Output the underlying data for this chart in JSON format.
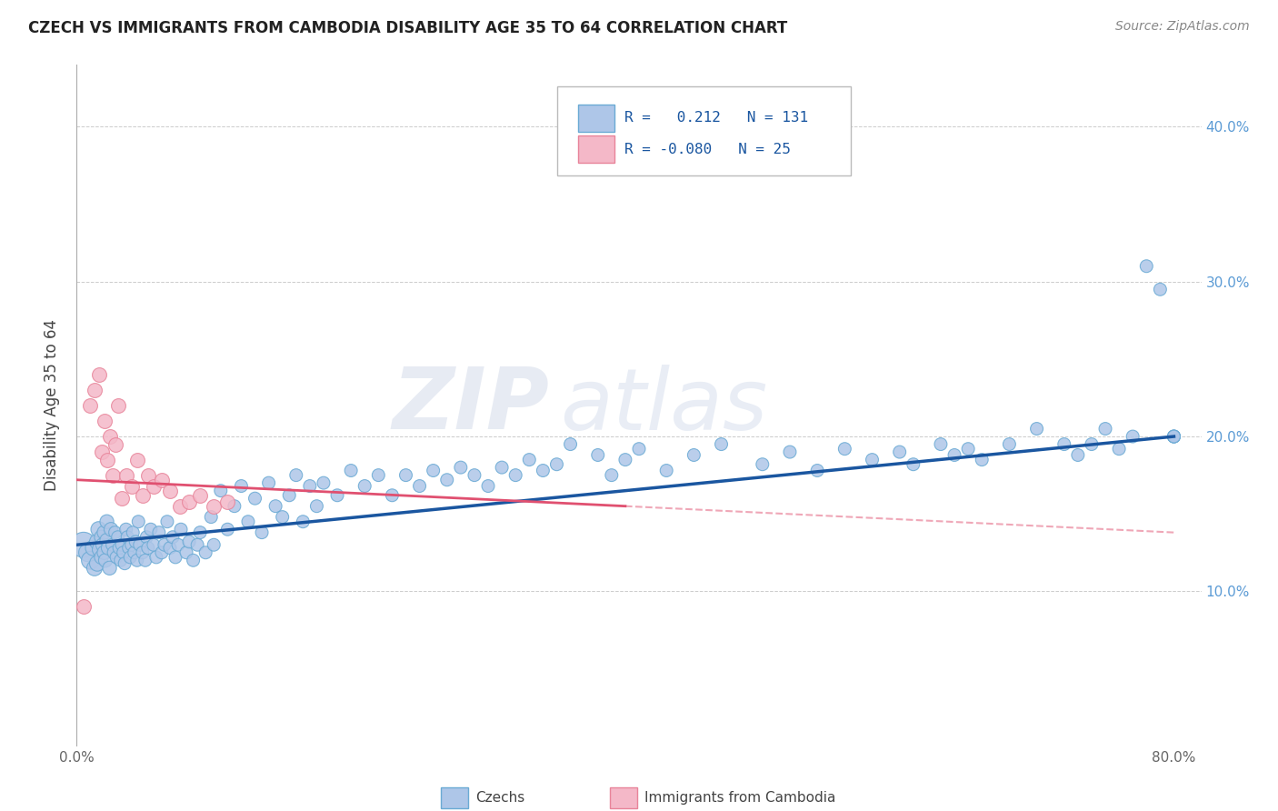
{
  "title": "CZECH VS IMMIGRANTS FROM CAMBODIA DISABILITY AGE 35 TO 64 CORRELATION CHART",
  "source": "Source: ZipAtlas.com",
  "ylabel": "Disability Age 35 to 64",
  "xlim": [
    0.0,
    0.82
  ],
  "ylim": [
    0.0,
    0.44
  ],
  "xtick_positions": [
    0.0,
    0.1,
    0.2,
    0.3,
    0.4,
    0.5,
    0.6,
    0.7,
    0.8
  ],
  "xticklabels": [
    "0.0%",
    "",
    "",
    "",
    "",
    "",
    "",
    "",
    "80.0%"
  ],
  "ytick_positions": [
    0.0,
    0.1,
    0.2,
    0.3,
    0.4
  ],
  "yticklabels_right": [
    "",
    "10.0%",
    "20.0%",
    "30.0%",
    "40.0%"
  ],
  "czech_color": "#aec6e8",
  "cambodia_color": "#f4b8c8",
  "czech_edge_color": "#6aaad4",
  "cambodia_edge_color": "#e8849a",
  "trend_czech_color": "#1a56a0",
  "trend_cambodia_color": "#e05070",
  "legend_R_czech": "0.212",
  "legend_N_czech": "131",
  "legend_R_cambodia": "-0.080",
  "legend_N_cambodia": "25",
  "watermark_zip": "ZIP",
  "watermark_atlas": "atlas",
  "background_color": "#ffffff",
  "grid_color": "#cccccc",
  "trend_czech_x0": 0.0,
  "trend_czech_y0": 0.13,
  "trend_czech_x1": 0.8,
  "trend_czech_y1": 0.2,
  "trend_cambodia_solid_x0": 0.0,
  "trend_cambodia_solid_y0": 0.172,
  "trend_cambodia_solid_x1": 0.4,
  "trend_cambodia_solid_y1": 0.155,
  "trend_cambodia_dashed_x0": 0.4,
  "trend_cambodia_dashed_y0": 0.155,
  "trend_cambodia_dashed_x1": 0.8,
  "trend_cambodia_dashed_y1": 0.138,
  "czech_x": [
    0.005,
    0.008,
    0.01,
    0.012,
    0.013,
    0.015,
    0.015,
    0.016,
    0.017,
    0.018,
    0.018,
    0.019,
    0.02,
    0.02,
    0.021,
    0.022,
    0.022,
    0.023,
    0.024,
    0.025,
    0.026,
    0.027,
    0.028,
    0.029,
    0.03,
    0.031,
    0.032,
    0.033,
    0.034,
    0.035,
    0.036,
    0.037,
    0.038,
    0.039,
    0.04,
    0.041,
    0.042,
    0.043,
    0.044,
    0.045,
    0.046,
    0.048,
    0.05,
    0.051,
    0.052,
    0.054,
    0.056,
    0.058,
    0.06,
    0.062,
    0.064,
    0.066,
    0.068,
    0.07,
    0.072,
    0.074,
    0.076,
    0.08,
    0.082,
    0.085,
    0.088,
    0.09,
    0.094,
    0.098,
    0.1,
    0.105,
    0.11,
    0.115,
    0.12,
    0.125,
    0.13,
    0.135,
    0.14,
    0.145,
    0.15,
    0.155,
    0.16,
    0.165,
    0.17,
    0.175,
    0.18,
    0.19,
    0.2,
    0.21,
    0.22,
    0.23,
    0.24,
    0.25,
    0.26,
    0.27,
    0.28,
    0.29,
    0.3,
    0.31,
    0.32,
    0.33,
    0.34,
    0.35,
    0.36,
    0.38,
    0.39,
    0.4,
    0.41,
    0.43,
    0.45,
    0.47,
    0.5,
    0.52,
    0.54,
    0.56,
    0.58,
    0.6,
    0.61,
    0.63,
    0.64,
    0.65,
    0.66,
    0.68,
    0.7,
    0.72,
    0.73,
    0.74,
    0.75,
    0.76,
    0.77,
    0.78,
    0.79,
    0.8,
    0.8,
    0.8,
    0.8
  ],
  "czech_y": [
    0.13,
    0.125,
    0.12,
    0.128,
    0.115,
    0.132,
    0.118,
    0.14,
    0.127,
    0.135,
    0.122,
    0.13,
    0.138,
    0.125,
    0.12,
    0.133,
    0.145,
    0.128,
    0.115,
    0.14,
    0.13,
    0.125,
    0.138,
    0.122,
    0.135,
    0.128,
    0.12,
    0.13,
    0.125,
    0.118,
    0.14,
    0.135,
    0.128,
    0.122,
    0.13,
    0.138,
    0.125,
    0.132,
    0.12,
    0.145,
    0.13,
    0.125,
    0.12,
    0.135,
    0.128,
    0.14,
    0.13,
    0.122,
    0.138,
    0.125,
    0.13,
    0.145,
    0.128,
    0.135,
    0.122,
    0.13,
    0.14,
    0.125,
    0.132,
    0.12,
    0.13,
    0.138,
    0.125,
    0.148,
    0.13,
    0.165,
    0.14,
    0.155,
    0.168,
    0.145,
    0.16,
    0.138,
    0.17,
    0.155,
    0.148,
    0.162,
    0.175,
    0.145,
    0.168,
    0.155,
    0.17,
    0.162,
    0.178,
    0.168,
    0.175,
    0.162,
    0.175,
    0.168,
    0.178,
    0.172,
    0.18,
    0.175,
    0.168,
    0.18,
    0.175,
    0.185,
    0.178,
    0.182,
    0.195,
    0.188,
    0.175,
    0.185,
    0.192,
    0.178,
    0.188,
    0.195,
    0.182,
    0.19,
    0.178,
    0.192,
    0.185,
    0.19,
    0.182,
    0.195,
    0.188,
    0.192,
    0.185,
    0.195,
    0.205,
    0.195,
    0.188,
    0.195,
    0.205,
    0.192,
    0.2,
    0.31,
    0.295,
    0.2,
    0.2,
    0.2,
    0.2
  ],
  "czech_sizes": [
    400,
    200,
    200,
    150,
    150,
    150,
    150,
    150,
    150,
    120,
    120,
    120,
    120,
    120,
    120,
    120,
    120,
    120,
    120,
    120,
    100,
    100,
    100,
    100,
    100,
    100,
    100,
    100,
    100,
    100,
    100,
    100,
    100,
    100,
    100,
    100,
    100,
    100,
    100,
    100,
    100,
    100,
    100,
    100,
    100,
    100,
    100,
    100,
    100,
    100,
    100,
    100,
    100,
    100,
    100,
    100,
    100,
    100,
    100,
    100,
    100,
    100,
    100,
    100,
    100,
    100,
    100,
    100,
    100,
    100,
    100,
    100,
    100,
    100,
    100,
    100,
    100,
    100,
    100,
    100,
    100,
    100,
    100,
    100,
    100,
    100,
    100,
    100,
    100,
    100,
    100,
    100,
    100,
    100,
    100,
    100,
    100,
    100,
    100,
    100,
    100,
    100,
    100,
    100,
    100,
    100,
    100,
    100,
    100,
    100,
    100,
    100,
    100,
    100,
    100,
    100,
    100,
    100,
    100,
    100,
    100,
    100,
    100,
    100,
    100,
    100,
    100,
    100,
    100,
    100,
    100
  ],
  "cambodia_x": [
    0.005,
    0.01,
    0.013,
    0.016,
    0.018,
    0.02,
    0.022,
    0.024,
    0.026,
    0.028,
    0.03,
    0.033,
    0.036,
    0.04,
    0.044,
    0.048,
    0.052,
    0.056,
    0.062,
    0.068,
    0.075,
    0.082,
    0.09,
    0.1,
    0.11
  ],
  "cambodia_y": [
    0.09,
    0.22,
    0.23,
    0.24,
    0.19,
    0.21,
    0.185,
    0.2,
    0.175,
    0.195,
    0.22,
    0.16,
    0.175,
    0.168,
    0.185,
    0.162,
    0.175,
    0.168,
    0.172,
    0.165,
    0.155,
    0.158,
    0.162,
    0.155,
    0.158
  ]
}
